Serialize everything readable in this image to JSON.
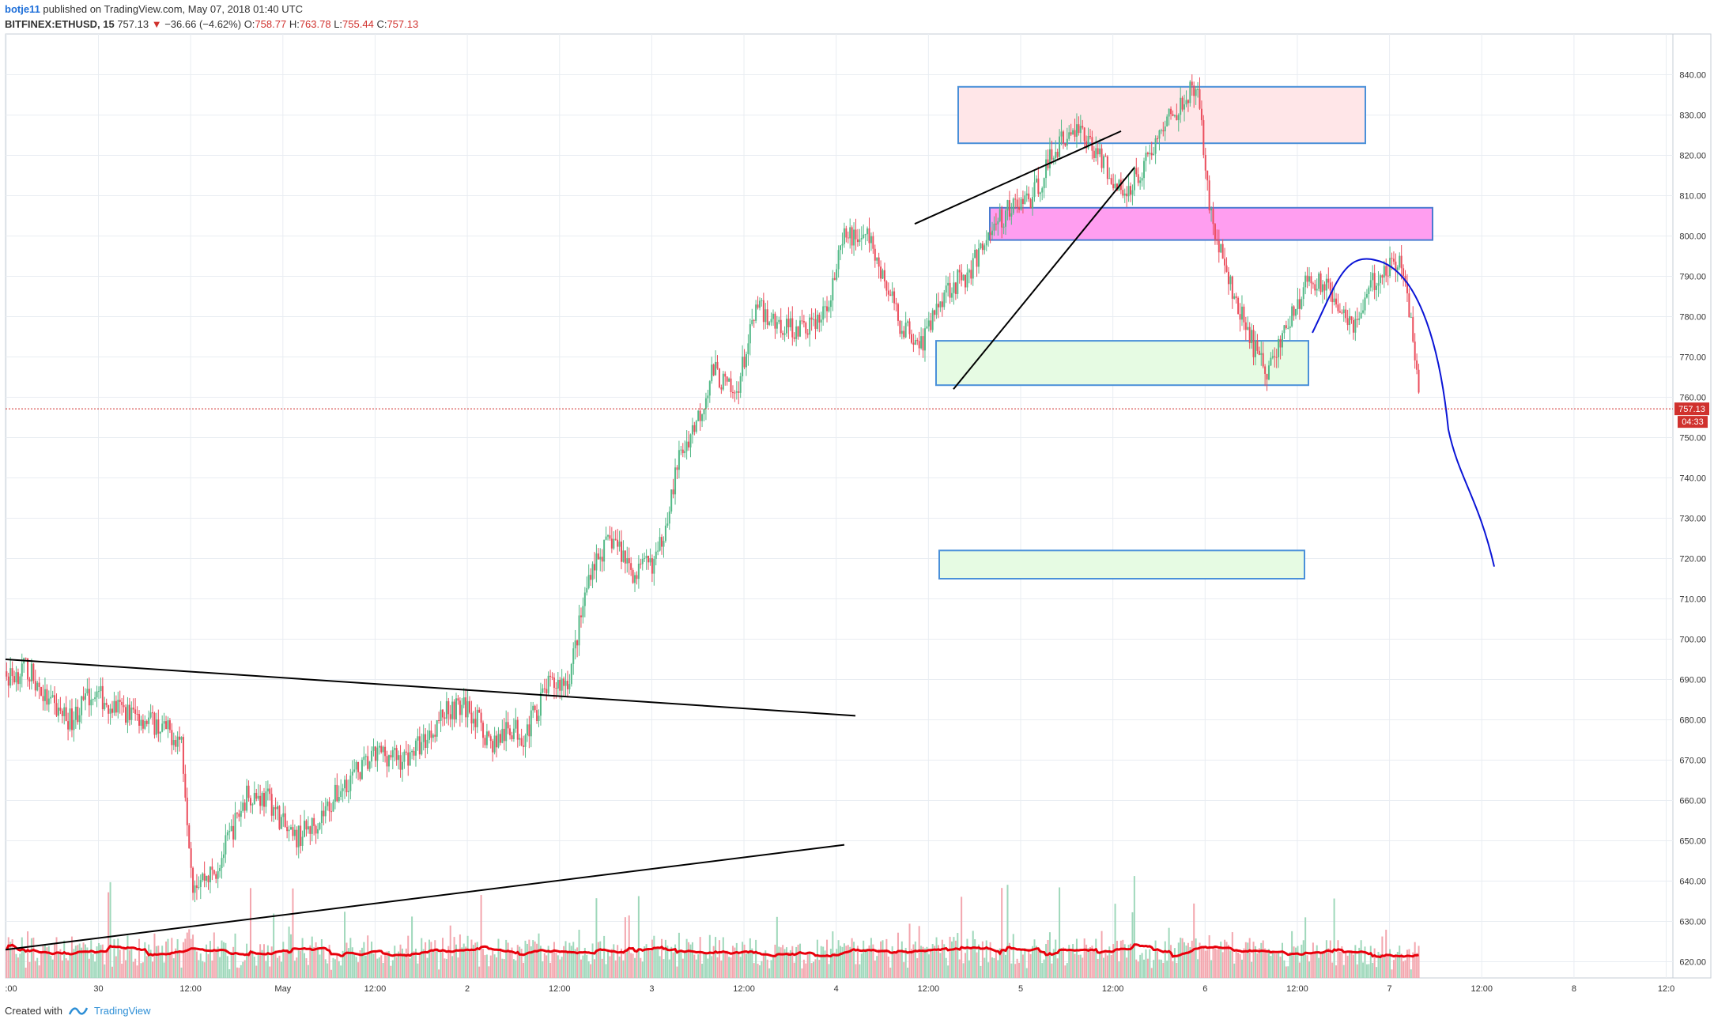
{
  "header": {
    "author": "botje11",
    "published": "published on TradingView.com, May 07, 2018 01:40 UTC",
    "symbol": "BITFINEX:ETHUSD, 15",
    "last": "757.13",
    "change_arrow": "▼",
    "change": "−36.66 (−4.62%)",
    "o_label": "O:",
    "o_value": "758.77",
    "h_label": "H:",
    "h_value": "763.78",
    "l_label": "L:",
    "l_value": "755.44",
    "c_label": "C:",
    "c_value": "757.13"
  },
  "footer": {
    "created_with": "Created with",
    "brand": "TradingView"
  },
  "colors": {
    "up": "#53b987",
    "down": "#eb4d5c",
    "volume_up": "#9fd8bb",
    "volume_down": "#f3a6ae",
    "ma": "#e8000b",
    "price_line": "#d0312d",
    "projection": "#0a14d6",
    "grid": "#e9edf2"
  },
  "chart_data": {
    "type": "candlestick",
    "symbol": "BITFINEX:ETHUSD",
    "interval": "15",
    "y_ticks": [
      620,
      630,
      640,
      650,
      660,
      670,
      680,
      690,
      700,
      710,
      720,
      730,
      740,
      750,
      760,
      770,
      780,
      790,
      800,
      810,
      820,
      830,
      840
    ],
    "y_tick_labels": [
      "620.00",
      "630.00",
      "640.00",
      "650.00",
      "660.00",
      "670.00",
      "680.00",
      "690.00",
      "700.00",
      "710.00",
      "720.00",
      "730.00",
      "740.00",
      "750.00",
      "760.00",
      "770.00",
      "780.00",
      "790.00",
      "800.00",
      "810.00",
      "820.00",
      "830.00",
      "840.00"
    ],
    "ylim": [
      615.5,
      848
    ],
    "x_tick_labels": [
      ":00",
      "30",
      "12:00",
      "May",
      "12:00",
      "2",
      "12:00",
      "3",
      "12:00",
      "4",
      "12:00",
      "5",
      "12:00",
      "6",
      "12:00",
      "7",
      "12:00",
      "8",
      "12:0"
    ],
    "current_price": 757.13,
    "current_price_label": "757.13",
    "countdown_label": "04:33",
    "price_path": [
      [
        0,
        680
      ],
      [
        0.02,
        684
      ],
      [
        0.05,
        679
      ],
      [
        0.08,
        688
      ],
      [
        0.11,
        693
      ],
      [
        0.13,
        684
      ],
      [
        0.15,
        680
      ],
      [
        0.17,
        687
      ],
      [
        0.19,
        683
      ],
      [
        0.22,
        680
      ],
      [
        0.25,
        675
      ],
      [
        0.26,
        640
      ],
      [
        0.28,
        642
      ],
      [
        0.31,
        662
      ],
      [
        0.33,
        660
      ],
      [
        0.35,
        650
      ],
      [
        0.37,
        654
      ],
      [
        0.4,
        665
      ],
      [
        0.43,
        672
      ],
      [
        0.45,
        670
      ],
      [
        0.47,
        675
      ],
      [
        0.49,
        683
      ],
      [
        0.51,
        683
      ],
      [
        0.53,
        674
      ],
      [
        0.55,
        678
      ],
      [
        0.56,
        676
      ],
      [
        0.58,
        688
      ],
      [
        0.6,
        690
      ],
      [
        0.62,
        718
      ],
      [
        0.64,
        725
      ],
      [
        0.66,
        716
      ],
      [
        0.68,
        720
      ],
      [
        0.7,
        745
      ],
      [
        0.72,
        757
      ],
      [
        0.73,
        767
      ],
      [
        0.75,
        760
      ],
      [
        0.77,
        782
      ],
      [
        0.79,
        778
      ],
      [
        0.81,
        777
      ],
      [
        0.83,
        780
      ],
      [
        0.85,
        800
      ],
      [
        0.87,
        800
      ],
      [
        0.9,
        778
      ],
      [
        0.92,
        774
      ],
      [
        0.94,
        787
      ],
      [
        0.96,
        790
      ],
      [
        0.98,
        801
      ],
      [
        1.0,
        807
      ],
      [
        1.02,
        810
      ],
      [
        1.04,
        822
      ],
      [
        1.06,
        827
      ],
      [
        1.08,
        820
      ],
      [
        1.1,
        810
      ],
      [
        1.12,
        818
      ],
      [
        1.14,
        828
      ],
      [
        1.16,
        836
      ],
      [
        1.17,
        833
      ],
      [
        1.18,
        805
      ],
      [
        1.2,
        785
      ],
      [
        1.22,
        772
      ],
      [
        1.23,
        766
      ],
      [
        1.25,
        778
      ],
      [
        1.27,
        790
      ],
      [
        1.29,
        786
      ],
      [
        1.31,
        778
      ],
      [
        1.33,
        790
      ],
      [
        1.35,
        794
      ],
      [
        1.36,
        782
      ],
      [
        1.37,
        757
      ]
    ],
    "zones": [
      {
        "name": "resistance-zone-top",
        "from": 823,
        "to": 837,
        "fill": "#ffe6e8",
        "stroke": "#4a90d9"
      },
      {
        "name": "resistance-zone-magenta",
        "from": 799,
        "to": 807,
        "fill": "#ff9ef0",
        "stroke": "#4a7bd1"
      },
      {
        "name": "support-zone-upper",
        "from": 763,
        "to": 774,
        "fill": "#e6fbe3",
        "stroke": "#4a90d9"
      },
      {
        "name": "support-zone-lower",
        "from": 715,
        "to": 722,
        "fill": "#e6fbe3",
        "stroke": "#4a90d9"
      }
    ]
  }
}
